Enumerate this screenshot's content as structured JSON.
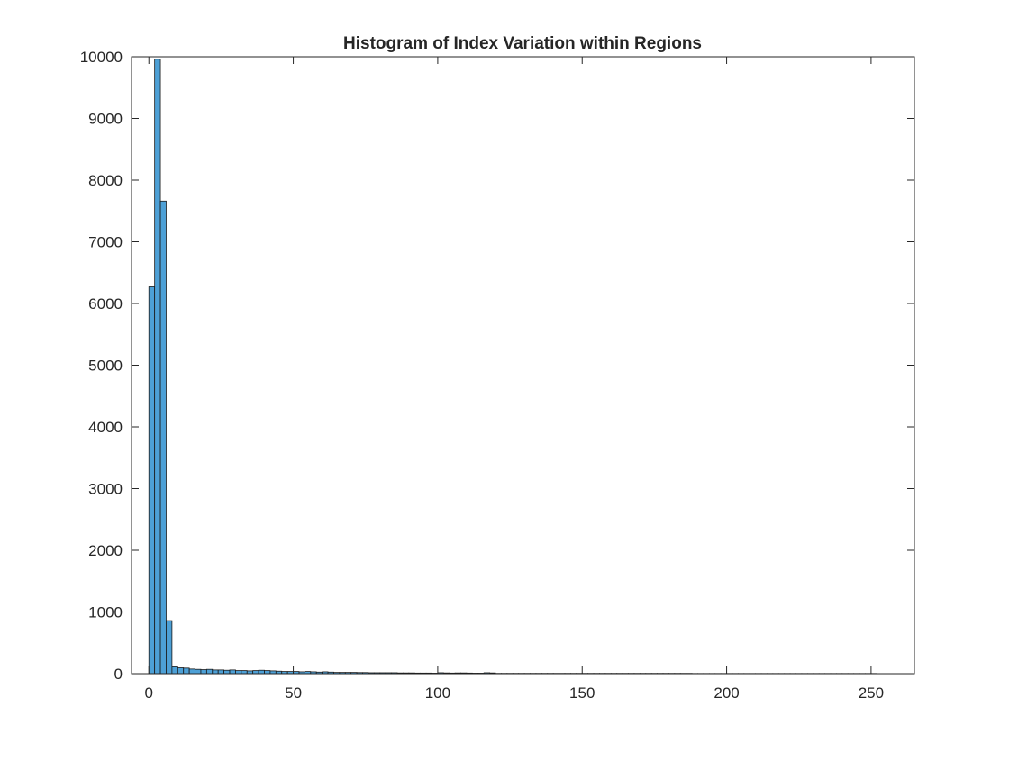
{
  "chart_data": {
    "type": "bar",
    "title": "Histogram of Index Variation within Regions",
    "xlabel": "",
    "ylabel": "",
    "xlim": [
      -6,
      265
    ],
    "ylim": [
      0,
      10000
    ],
    "xticks": [
      0,
      50,
      100,
      150,
      200,
      250
    ],
    "yticks": [
      0,
      1000,
      2000,
      3000,
      4000,
      5000,
      6000,
      7000,
      8000,
      9000,
      10000
    ],
    "xtick_labels": [
      "0",
      "50",
      "100",
      "150",
      "200",
      "250"
    ],
    "ytick_labels": [
      "0",
      "1000",
      "2000",
      "3000",
      "4000",
      "5000",
      "6000",
      "7000",
      "8000",
      "9000",
      "10000"
    ],
    "bin_width": 2,
    "bin_start": 0,
    "values": [
      6270,
      9960,
      7660,
      860,
      110,
      95,
      90,
      75,
      70,
      65,
      70,
      60,
      60,
      55,
      60,
      50,
      50,
      45,
      50,
      55,
      50,
      45,
      40,
      35,
      35,
      35,
      30,
      35,
      30,
      25,
      30,
      25,
      20,
      20,
      20,
      20,
      18,
      18,
      15,
      15,
      15,
      15,
      15,
      12,
      12,
      12,
      10,
      10,
      10,
      8,
      15,
      12,
      10,
      12,
      12,
      10,
      8,
      8,
      15,
      12,
      5,
      5,
      5,
      5,
      5,
      5,
      5,
      5,
      5,
      5,
      5,
      5,
      5,
      5,
      5,
      5,
      5,
      5,
      5,
      5,
      5,
      5,
      5,
      5,
      5,
      5,
      5,
      5,
      5,
      5,
      5,
      5,
      5,
      5,
      3,
      3,
      3,
      3,
      3,
      3,
      3,
      3,
      3,
      3,
      3,
      3,
      3,
      3,
      3,
      3,
      3,
      3,
      3,
      3,
      3,
      3,
      3,
      3,
      3,
      3,
      3,
      3,
      3,
      3,
      3,
      3
    ],
    "bar_color": "#4DA0D6",
    "edge_color": "#1a1a1a",
    "grid": false,
    "legend": "none"
  }
}
